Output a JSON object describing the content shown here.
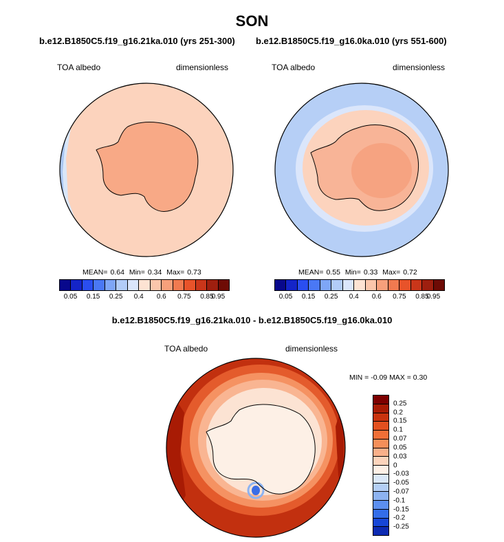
{
  "title": "SON",
  "panels": [
    {
      "case_title": "b.e12.B1850C5.f19_g16.21ka.010 (yrs 251-300)",
      "variable_label": "TOA albedo",
      "units_label": "dimensionless",
      "stats": {
        "mean_label": "MEAN=",
        "mean": "0.64",
        "min_label": "Min=",
        "min": "0.34",
        "max_label": "Max=",
        "max": "0.73"
      }
    },
    {
      "case_title": "b.e12.B1850C5.f19_g16.0ka.010 (yrs 551-600)",
      "variable_label": "TOA albedo",
      "units_label": "dimensionless",
      "stats": {
        "mean_label": "MEAN=",
        "mean": "0.55",
        "min_label": "Min=",
        "min": "0.33",
        "max_label": "Max=",
        "max": "0.72"
      }
    }
  ],
  "difference": {
    "title": "b.e12.B1850C5.f19_g16.21ka.010 - b.e12.B1850C5.f19_g16.0ka.010",
    "variable_label": "TOA albedo",
    "units_label": "dimensionless",
    "minmax_text": "MIN =  -0.09 MAX =   0.30"
  },
  "chart_data": [
    {
      "type": "heatmap",
      "projection": "south-polar-stereographic",
      "title": "b.e12.B1850C5.f19_g16.21ka.010 (yrs 251-300)",
      "variable": "TOA albedo",
      "units": "dimensionless",
      "mean": 0.64,
      "min": 0.34,
      "max": 0.73,
      "field_levels_shown": {
        "open_ocean": 0.6,
        "antarctica_interior": 0.7,
        "western_edge": 0.4
      },
      "colorbar": {
        "tick_labels": [
          "0.05",
          "0.15",
          "0.25",
          "0.4",
          "0.6",
          "0.75",
          "0.85",
          "0.95"
        ],
        "colors": [
          "#08088c",
          "#1424c8",
          "#2a4ef0",
          "#4a78f5",
          "#7ea6f7",
          "#b2ccf8",
          "#dbe6fb",
          "#fde3d3",
          "#fbc6ab",
          "#f7a07b",
          "#f17a50",
          "#e8532a",
          "#c9361a",
          "#9e1f0f",
          "#6e0b05"
        ]
      }
    },
    {
      "type": "heatmap",
      "projection": "south-polar-stereographic",
      "title": "b.e12.B1850C5.f19_g16.0ka.010 (yrs 551-600)",
      "variable": "TOA albedo",
      "units": "dimensionless",
      "mean": 0.55,
      "min": 0.33,
      "max": 0.72,
      "field_levels_shown": {
        "outer_ocean": 0.4,
        "sea_ice_zone": 0.6,
        "antarctica_interior": 0.7
      },
      "colorbar": {
        "tick_labels": [
          "0.05",
          "0.15",
          "0.25",
          "0.4",
          "0.6",
          "0.75",
          "0.85",
          "0.95"
        ],
        "colors": [
          "#08088c",
          "#1424c8",
          "#2a4ef0",
          "#4a78f5",
          "#7ea6f7",
          "#b2ccf8",
          "#dbe6fb",
          "#fde3d3",
          "#fbc6ab",
          "#f7a07b",
          "#f17a50",
          "#e8532a",
          "#c9361a",
          "#9e1f0f",
          "#6e0b05"
        ]
      }
    },
    {
      "type": "heatmap",
      "projection": "south-polar-stereographic",
      "title": "b.e12.B1850C5.f19_g16.21ka.010 - b.e12.B1850C5.f19_g16.0ka.010",
      "variable": "TOA albedo difference",
      "units": "dimensionless",
      "min": -0.09,
      "max": 0.3,
      "colorbar": {
        "orientation": "vertical",
        "tick_labels": [
          "0.25",
          "0.2",
          "0.15",
          "0.1",
          "0.07",
          "0.05",
          "0.03",
          "0",
          "-0.03",
          "-0.05",
          "-0.07",
          "-0.1",
          "-0.15",
          "-0.2",
          "-0.25"
        ],
        "colors": [
          "#7d0000",
          "#a81b04",
          "#c9330e",
          "#e2501f",
          "#f06f37",
          "#f58f59",
          "#f9b08a",
          "#fcd4bc",
          "#fdf0e6",
          "#dbe8f8",
          "#b4cff5",
          "#8db3f1",
          "#5c8ff0",
          "#336de9",
          "#1646d7",
          "#0d2bb2"
        ]
      }
    }
  ]
}
